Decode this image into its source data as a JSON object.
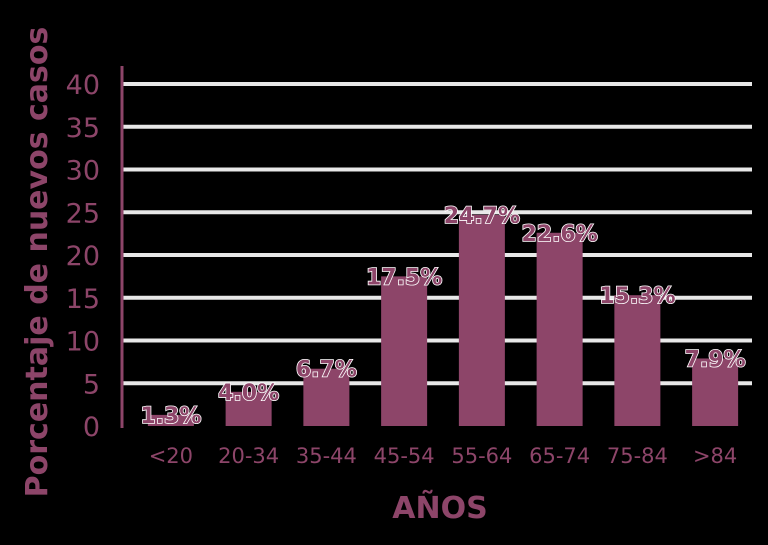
{
  "chart_data": {
    "type": "bar",
    "categories": [
      "<20",
      "20-34",
      "35-44",
      "45-54",
      "55-64",
      "65-74",
      "75-84",
      ">84"
    ],
    "values": [
      1.3,
      4.0,
      6.7,
      17.5,
      24.7,
      22.6,
      15.3,
      7.9
    ],
    "value_labels": [
      "1.3%",
      "4.0%",
      "6.7%",
      "17.5%",
      "24.7%",
      "22.6%",
      "15.3%",
      "7.9%"
    ],
    "yticks": [
      0,
      5,
      10,
      15,
      20,
      25,
      30,
      35,
      40
    ],
    "ylim": [
      0,
      40
    ],
    "xlabel": "AÑOS",
    "ylabel": "Porcentaje de nuevos casos",
    "grid": true,
    "legend": "none"
  },
  "colors": {
    "bar": "#8d4569",
    "grid": "#e8e8e8",
    "text": "#8d4569",
    "background": "#000000"
  }
}
